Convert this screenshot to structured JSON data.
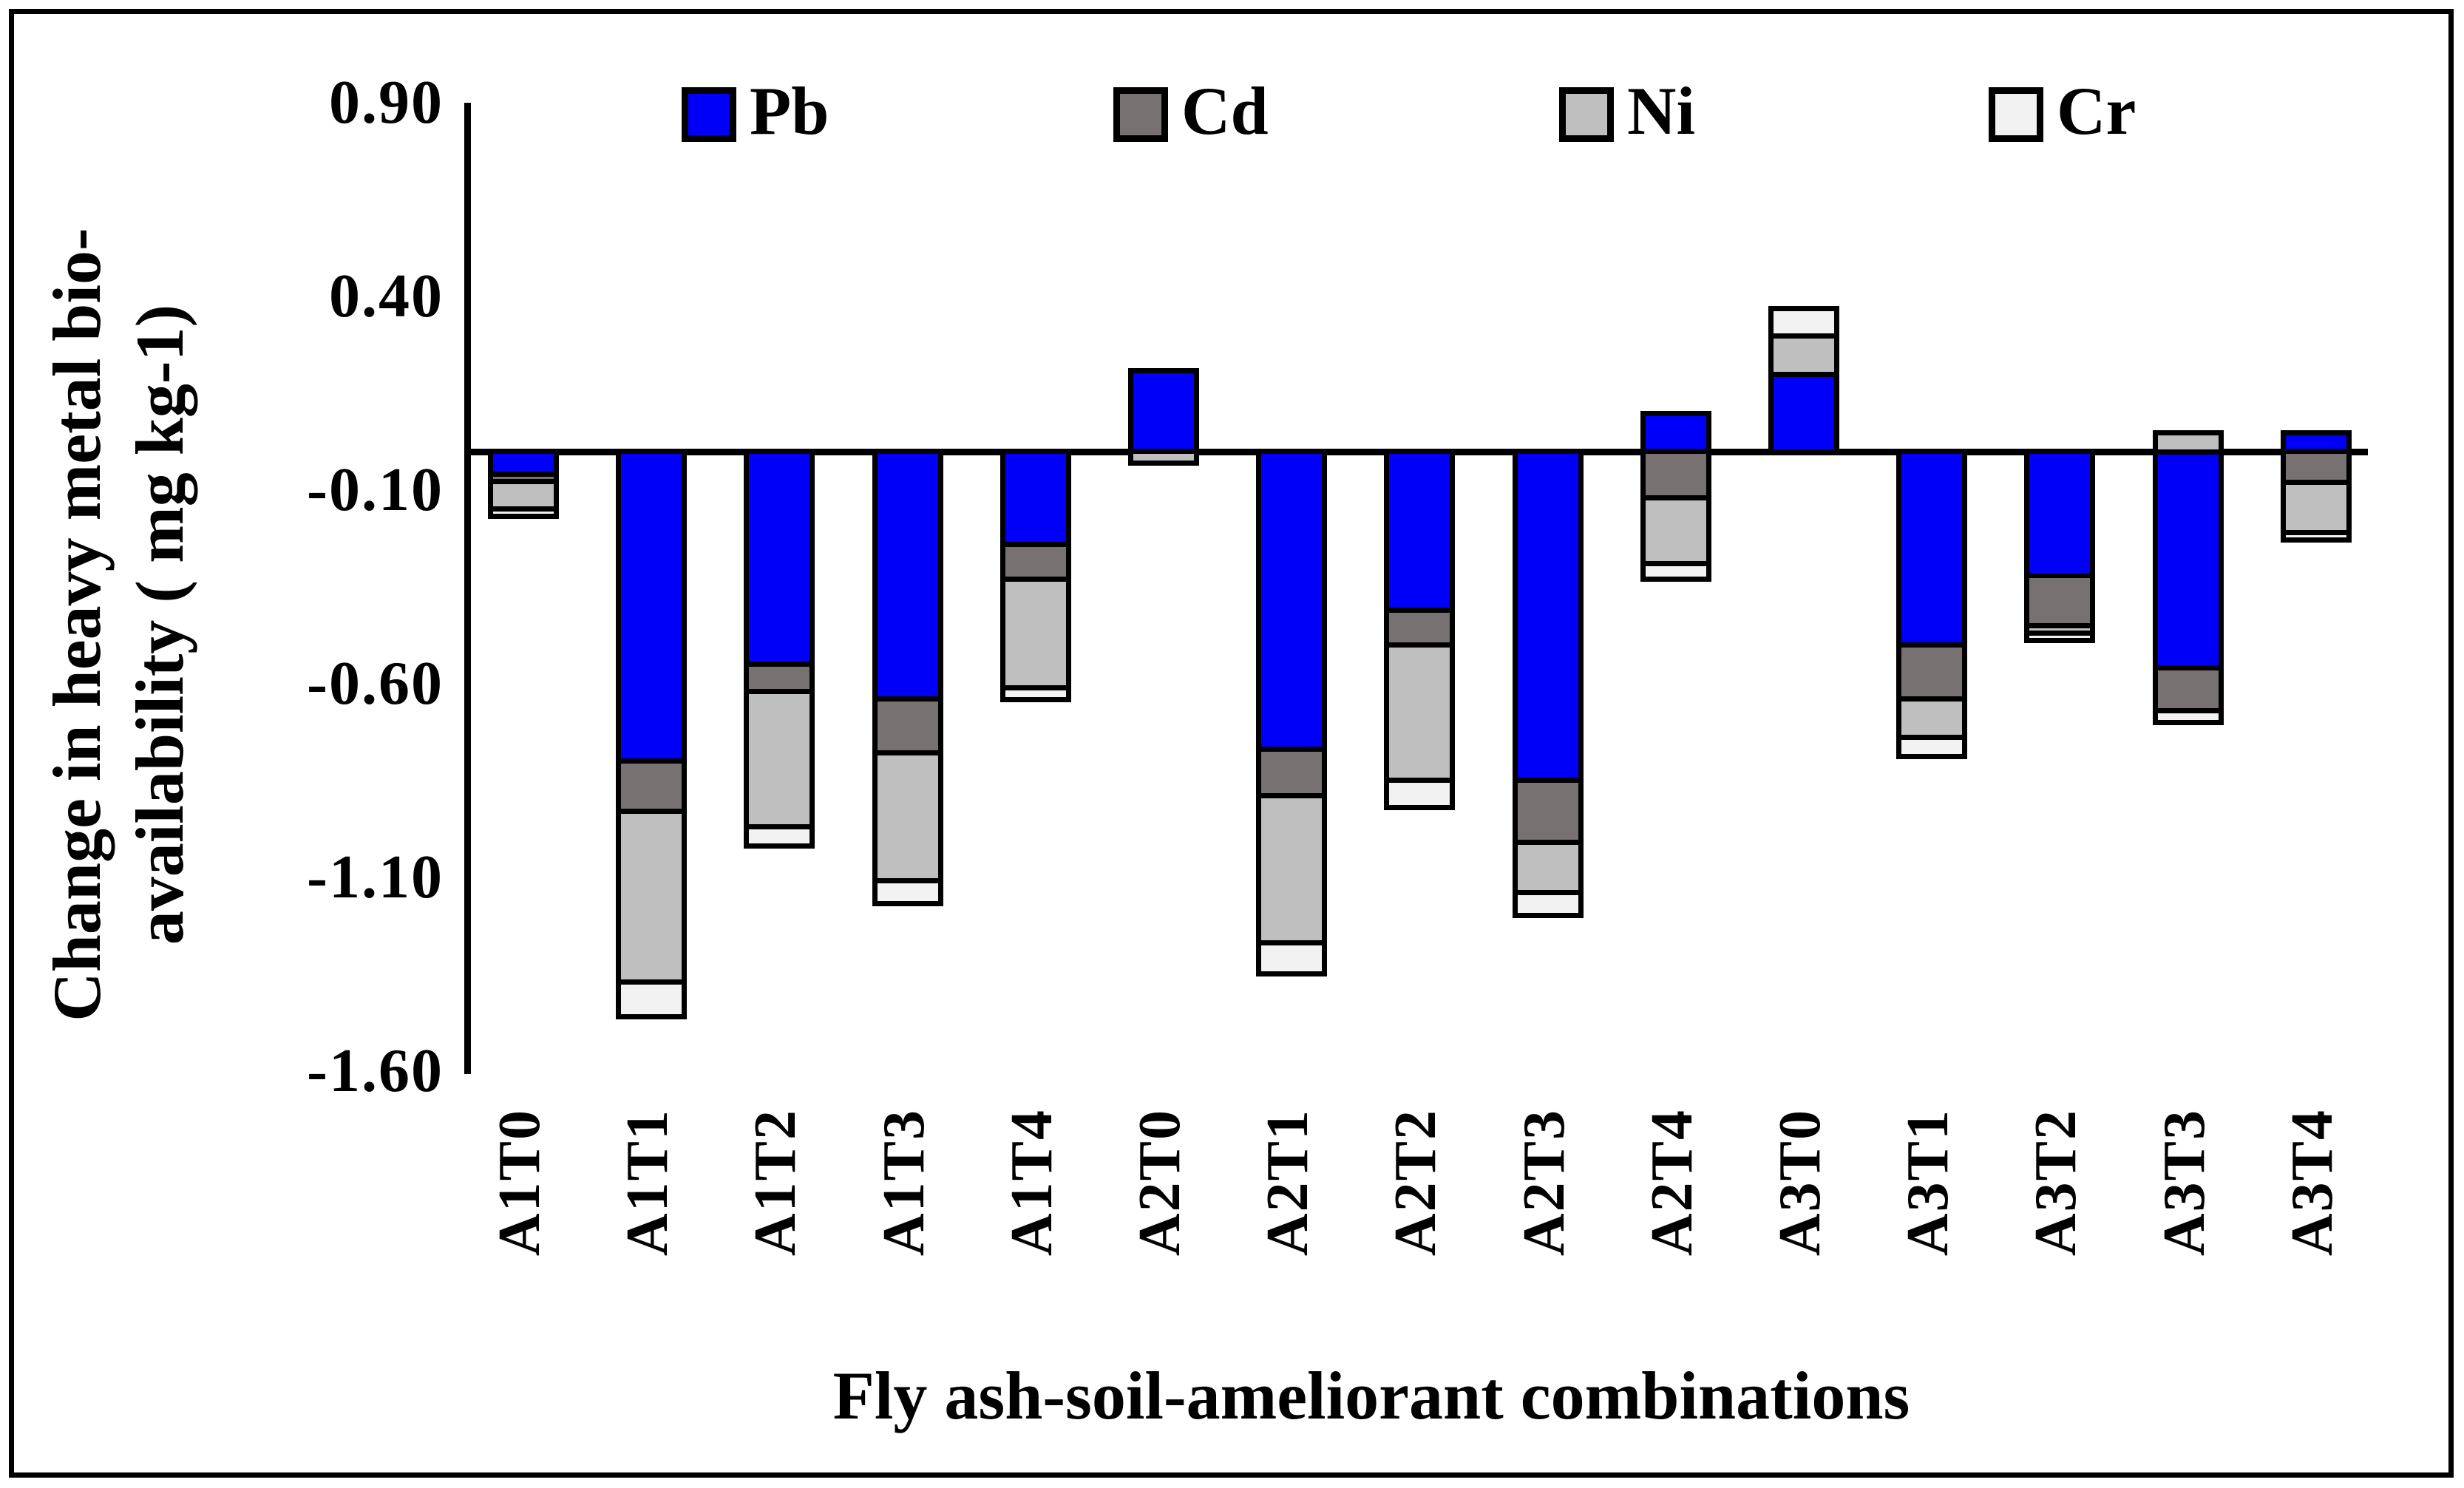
{
  "chart_data": {
    "type": "bar",
    "subtype": "stacked",
    "xlabel": "Fly ash-soil-ameliorant combinations",
    "ylabel_line1": "Change in heavy metal bio-",
    "ylabel_line2": "availability ( mg kg-1)",
    "categories": [
      "A1T0",
      "A1T1",
      "A1T2",
      "A1T3",
      "A1T4",
      "A2T0",
      "A2T1",
      "A2T2",
      "A2T3",
      "A2T4",
      "A3T0",
      "A3T1",
      "A3T2",
      "A3T3",
      "A3T4"
    ],
    "series": [
      {
        "name": "Pb",
        "color": "#0000FA",
        "values": [
          -0.06,
          -0.8,
          -0.55,
          -0.64,
          -0.24,
          0.21,
          -0.77,
          -0.41,
          -0.85,
          0.1,
          0.2,
          -0.5,
          -0.32,
          -0.56,
          0.05
        ]
      },
      {
        "name": "Cd",
        "color": "#777171",
        "values": [
          -0.02,
          -0.13,
          -0.07,
          -0.14,
          -0.09,
          0,
          -0.12,
          -0.09,
          -0.16,
          -0.12,
          0,
          -0.14,
          -0.13,
          -0.11,
          -0.08
        ]
      },
      {
        "name": "Ni",
        "color": "#C0BFBF",
        "values": [
          -0.07,
          -0.44,
          -0.35,
          -0.33,
          -0.28,
          -0.03,
          -0.38,
          -0.35,
          -0.13,
          -0.17,
          0.1,
          -0.1,
          -0.02,
          0.05,
          -0.13
        ]
      },
      {
        "name": "Cr",
        "color": "#F2F2F2",
        "values": [
          -0.02,
          -0.09,
          -0.05,
          -0.06,
          -0.03,
          0,
          -0.08,
          -0.07,
          -0.06,
          -0.04,
          0.07,
          -0.05,
          -0.02,
          -0.03,
          -0.02
        ]
      }
    ],
    "yticks": [
      0.9,
      0.4,
      -0.1,
      -0.6,
      -1.1,
      -1.6
    ],
    "ytick_labels": [
      "0.90",
      "0.40",
      "-0.10",
      "-0.60",
      "-1.10",
      "-1.60"
    ],
    "ylim": [
      -1.6,
      0.9
    ],
    "baseline": 0,
    "grid": "off",
    "legend_position": "top"
  },
  "legend": {
    "items": [
      {
        "label": "Pb",
        "color": "#0000FA"
      },
      {
        "label": "Cd",
        "color": "#777171"
      },
      {
        "label": "Ni",
        "color": "#C0BFBF"
      },
      {
        "label": "Cr",
        "color": "#F2F2F2"
      }
    ]
  },
  "figure": {
    "background": "#FFFFFF",
    "border_color": "#000000",
    "bar_outline_color": "#000000"
  }
}
